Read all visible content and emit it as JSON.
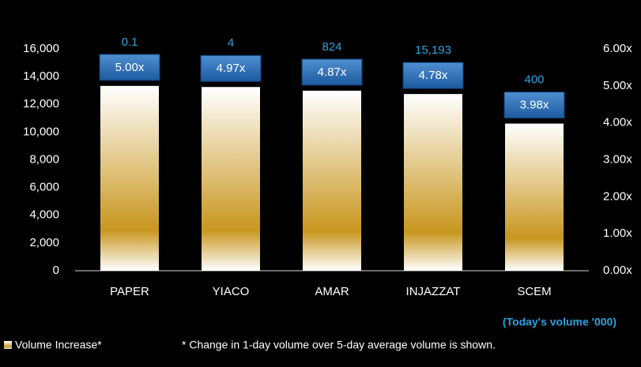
{
  "chart_data": {
    "type": "bar",
    "categories": [
      "PAPER",
      "YIACO",
      "AMAR",
      "INJAZZAT",
      "SCEM"
    ],
    "series": [
      {
        "name": "Volume Increase*",
        "color": "#c8961e",
        "axis": "y2",
        "values": [
          5.0,
          4.97,
          4.87,
          4.78,
          3.98
        ],
        "value_labels": [
          "5.00x",
          "4.97x",
          "4.87x",
          "4.78x",
          "3.98x"
        ]
      }
    ],
    "volume_labels": [
      "0.1",
      "4",
      "824",
      "15,193",
      "400"
    ],
    "annotation": "(Today's volume '000)",
    "footnote": "* Change in 1-day volume over 5-day average volume is shown.",
    "ylim": [
      0,
      16000
    ],
    "yticks": [
      0,
      {
        "value": 2000,
        "label": "2,000"
      },
      {
        "value": 4000,
        "label": "4,000"
      },
      {
        "value": 6000,
        "label": "6,000"
      },
      {
        "value": 8000,
        "label": "8,000"
      },
      {
        "value": 10000,
        "label": "10,000"
      },
      {
        "value": 12000,
        "label": "12,000"
      },
      {
        "value": 14000,
        "label": "14,000"
      },
      {
        "value": 16000,
        "label": "16,000"
      }
    ],
    "y2lim": [
      0,
      6
    ],
    "y2ticks": [
      {
        "value": 0,
        "label": "0.00x"
      },
      {
        "value": 1,
        "label": "1.00x"
      },
      {
        "value": 2,
        "label": "2.00x"
      },
      {
        "value": 3,
        "label": "3.00x"
      },
      {
        "value": 4,
        "label": "4.00x"
      },
      {
        "value": 5,
        "label": "5.00x"
      },
      {
        "value": 6,
        "label": "6.00x"
      }
    ],
    "legend": "bottom-left"
  }
}
